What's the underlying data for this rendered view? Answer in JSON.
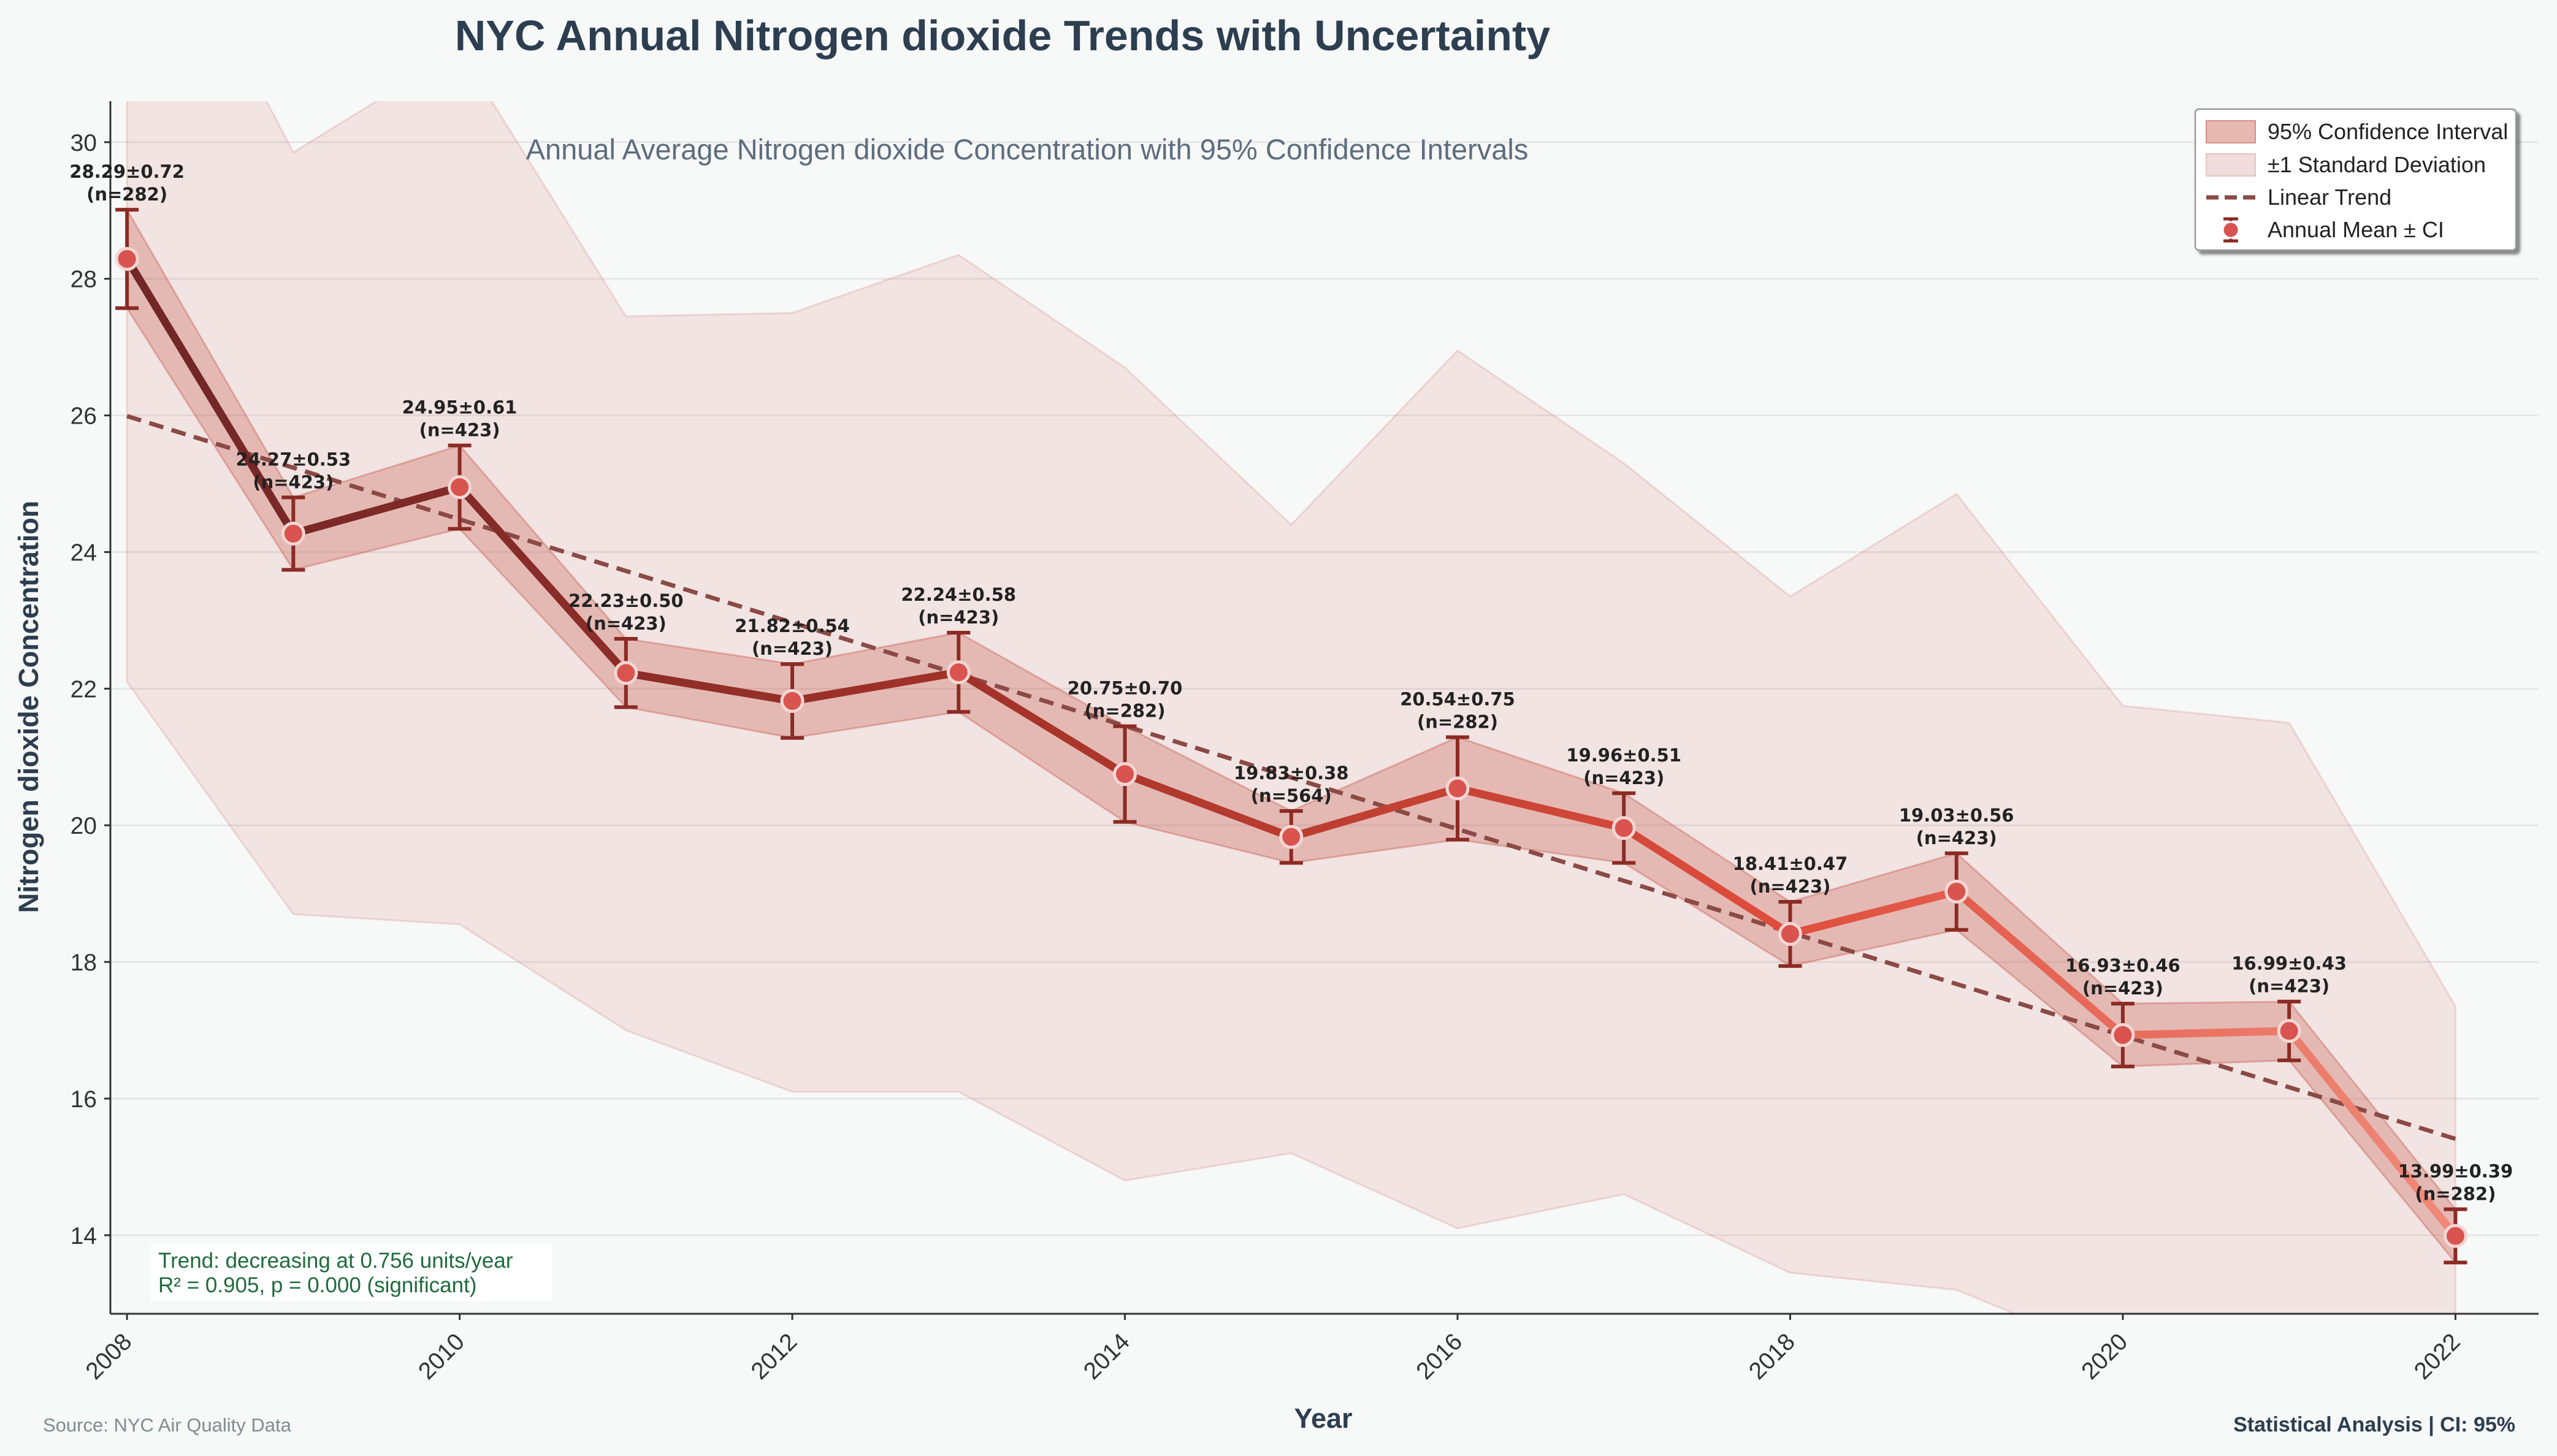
{
  "title": "NYC Annual Nitrogen dioxide Trends with Uncertainty",
  "subtitle": "Annual Average Nitrogen dioxide Concentration with 95% Confidence Intervals",
  "footer": {
    "source": "Source: NYC Air Quality Data",
    "analysis": "Statistical Analysis | CI: 95%"
  },
  "stats_box": {
    "line1": "Trend: decreasing at 0.756 units/year",
    "line2": "R² = 0.905, p = 0.000 (significant)"
  },
  "colors": {
    "ci_fill": "#c0392b",
    "sd_fill": "#c0392b",
    "trend_line": "#8b4a45",
    "line_start": "#722727",
    "line_end": "#f08a7a",
    "marker_fill": "#d9534f",
    "errorbar": "#8b2b24",
    "stats_text": "#1e6b3c"
  },
  "chart_data": {
    "type": "line",
    "xlabel": "Year",
    "ylabel": "Nitrogen dioxide Concentration",
    "xlim": [
      2007.9,
      2022.5
    ],
    "ylim": [
      12.85,
      30.6
    ],
    "x_ticks": [
      2008,
      2010,
      2012,
      2014,
      2016,
      2018,
      2020,
      2022
    ],
    "y_ticks": [
      14,
      16,
      18,
      20,
      22,
      24,
      26,
      28,
      30
    ],
    "grid": true,
    "legend_position": "top-right",
    "legend": [
      {
        "label": "95% Confidence Interval",
        "kind": "ci"
      },
      {
        "label": "±1 Standard Deviation",
        "kind": "sd"
      },
      {
        "label": "Linear Trend",
        "kind": "trend"
      },
      {
        "label": "Annual Mean ± CI",
        "kind": "mean"
      }
    ],
    "series": [
      {
        "name": "Annual Mean ± CI",
        "x": [
          2008,
          2009,
          2010,
          2011,
          2012,
          2013,
          2014,
          2015,
          2016,
          2017,
          2018,
          2019,
          2020,
          2021,
          2022
        ],
        "mean": [
          28.29,
          24.27,
          24.95,
          22.23,
          21.82,
          22.24,
          20.75,
          19.83,
          20.54,
          19.96,
          18.41,
          19.03,
          16.93,
          16.99,
          13.99
        ],
        "ci": [
          0.72,
          0.53,
          0.61,
          0.5,
          0.54,
          0.58,
          0.7,
          0.38,
          0.75,
          0.51,
          0.47,
          0.56,
          0.46,
          0.43,
          0.39
        ],
        "n": [
          282,
          423,
          423,
          423,
          423,
          423,
          282,
          564,
          282,
          423,
          423,
          423,
          423,
          423,
          282
        ],
        "sd_lower": [
          22.1,
          18.7,
          18.55,
          17.0,
          16.1,
          16.1,
          14.8,
          15.2,
          14.1,
          14.6,
          13.45,
          13.2,
          12.2,
          12.1,
          10.6
        ],
        "sd_upper": [
          34.5,
          29.85,
          31.35,
          27.45,
          27.5,
          28.35,
          26.7,
          24.4,
          26.95,
          25.3,
          23.35,
          24.85,
          21.75,
          21.5,
          17.35
        ]
      }
    ],
    "data_labels": [
      "28.29±0.72\n(n=282)",
      "24.27±0.53\n(n=423)",
      "24.95±0.61\n(n=423)",
      "22.23±0.50\n(n=423)",
      "21.82±0.54\n(n=423)",
      "22.24±0.58\n(n=423)",
      "20.75±0.70\n(n=282)",
      "19.83±0.38\n(n=564)",
      "20.54±0.75\n(n=282)",
      "19.96±0.51\n(n=423)",
      "18.41±0.47\n(n=423)",
      "19.03±0.56\n(n=423)",
      "16.93±0.46\n(n=423)",
      "16.99±0.43\n(n=423)",
      "13.99±0.39\n(n=282)"
    ],
    "trend": {
      "x": [
        2008,
        2022
      ],
      "y": [
        25.99,
        15.41
      ]
    }
  }
}
